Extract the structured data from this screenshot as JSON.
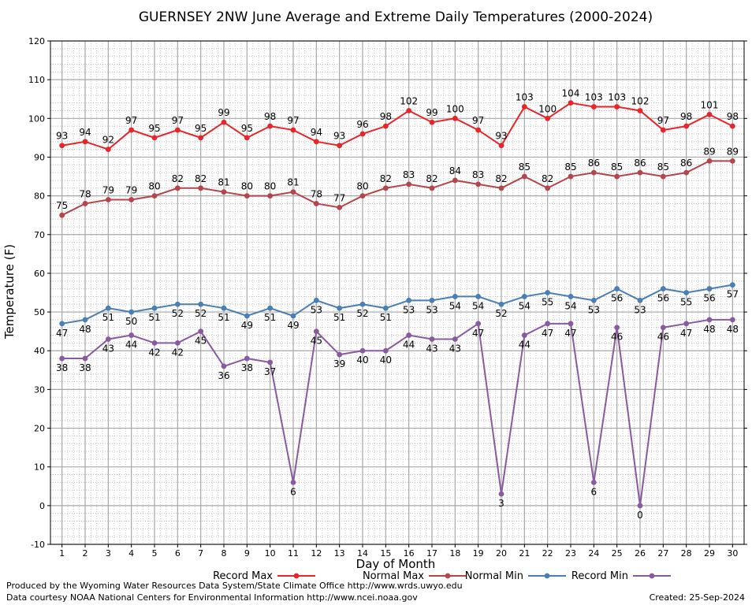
{
  "chart_data": {
    "type": "line",
    "title": "GUERNSEY 2NW June Average and Extreme Daily Temperatures (2000-2024)",
    "xlabel": "Day of Month",
    "ylabel": "Temperature (F)",
    "ylim": [
      -10,
      120
    ],
    "xlim": [
      0.5,
      30.5
    ],
    "y_ticks": [
      -10,
      0,
      10,
      20,
      30,
      40,
      50,
      60,
      70,
      80,
      90,
      100,
      110,
      120
    ],
    "x": [
      1,
      2,
      3,
      4,
      5,
      6,
      7,
      8,
      9,
      10,
      11,
      12,
      13,
      14,
      15,
      16,
      17,
      18,
      19,
      20,
      21,
      22,
      23,
      24,
      25,
      26,
      27,
      28,
      29,
      30
    ],
    "grid": true,
    "legend_position": "bottom",
    "series": [
      {
        "name": "Record Max",
        "color": "#e8252a",
        "label_position": "above",
        "values": [
          93,
          94,
          92,
          97,
          95,
          97,
          95,
          99,
          95,
          98,
          97,
          94,
          93,
          96,
          98,
          102,
          99,
          100,
          97,
          93,
          103,
          100,
          104,
          103,
          103,
          102,
          97,
          98,
          101,
          98
        ]
      },
      {
        "name": "Normal Max",
        "color": "#b5454a",
        "label_position": "above",
        "values": [
          75,
          78,
          79,
          79,
          80,
          82,
          82,
          81,
          80,
          80,
          81,
          78,
          77,
          80,
          82,
          83,
          82,
          84,
          83,
          82,
          85,
          82,
          85,
          86,
          85,
          86,
          85,
          86,
          89,
          89
        ]
      },
      {
        "name": "Normal Min",
        "color": "#4a7fb5",
        "label_position": "below",
        "values": [
          47,
          48,
          51,
          50,
          51,
          52,
          52,
          51,
          49,
          51,
          49,
          53,
          51,
          52,
          51,
          53,
          53,
          54,
          54,
          52,
          54,
          55,
          54,
          53,
          56,
          53,
          56,
          55,
          56,
          57
        ]
      },
      {
        "name": "Record Min",
        "color": "#8a5aa0",
        "label_position": "below",
        "values": [
          38,
          38,
          43,
          44,
          42,
          42,
          45,
          36,
          38,
          37,
          6,
          45,
          39,
          40,
          40,
          44,
          43,
          43,
          47,
          3,
          44,
          47,
          47,
          6,
          46,
          0,
          46,
          47,
          48,
          48
        ]
      }
    ]
  },
  "footer": {
    "produced_by": "Produced by the Wyoming Water Resources Data System/State Climate Office http://www.wrds.uwyo.edu",
    "data_courtesy": "Data courtesy NOAA National Centers for Environmental Information http://www.ncei.noaa.gov",
    "created": "Created:  25-Sep-2024"
  }
}
